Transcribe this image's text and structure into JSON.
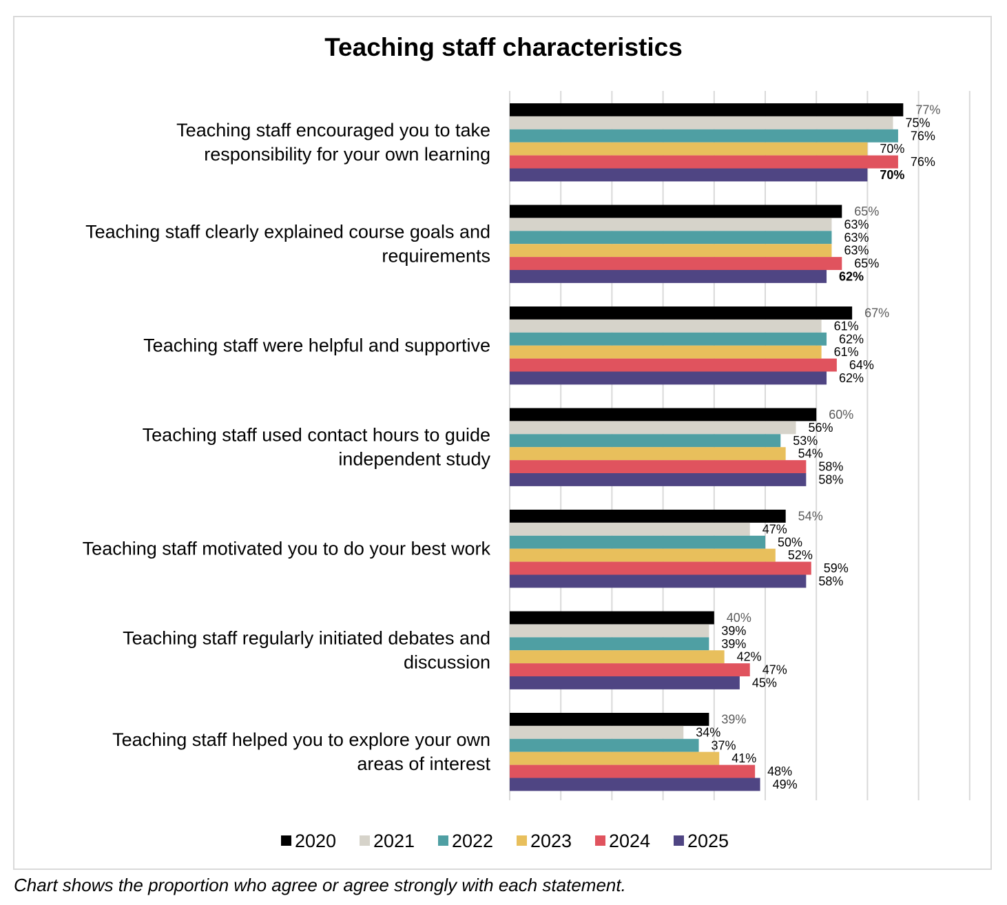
{
  "chart_data": {
    "type": "bar",
    "orientation": "horizontal",
    "title": "Teaching staff characteristics",
    "xlim": [
      0,
      90
    ],
    "grid": true,
    "legend_position": "bottom",
    "categories": [
      [
        "Teaching staff encouraged you to take",
        "responsibility for your own learning"
      ],
      [
        "Teaching staff clearly explained course goals and",
        "requirements"
      ],
      [
        "Teaching staff were helpful and supportive"
      ],
      [
        "Teaching staff used contact hours to guide",
        "independent study"
      ],
      [
        "Teaching staff motivated you to do your best work"
      ],
      [
        "Teaching staff regularly initiated debates and",
        "discussion"
      ],
      [
        "Teaching staff helped you to explore your own",
        "areas of interest"
      ]
    ],
    "series": [
      {
        "name": "2020",
        "color": "#000000",
        "label_color": "#595959",
        "values": [
          77,
          65,
          67,
          60,
          54,
          40,
          39
        ]
      },
      {
        "name": "2021",
        "color": "#d6d3ca",
        "label_color": "#000000",
        "values": [
          75,
          63,
          61,
          56,
          47,
          39,
          34
        ]
      },
      {
        "name": "2022",
        "color": "#4f9fa3",
        "label_color": "#000000",
        "values": [
          76,
          63,
          62,
          53,
          50,
          39,
          37
        ]
      },
      {
        "name": "2023",
        "color": "#e8bf5c",
        "label_color": "#000000",
        "values": [
          70,
          63,
          61,
          54,
          52,
          42,
          41
        ]
      },
      {
        "name": "2024",
        "color": "#e0535e",
        "label_color": "#000000",
        "values": [
          76,
          65,
          64,
          58,
          59,
          47,
          48
        ]
      },
      {
        "name": "2025",
        "color": "#4f4583",
        "label_color": "#000000",
        "values": [
          70,
          62,
          62,
          58,
          58,
          45,
          49
        ]
      }
    ],
    "bold_labels": [
      [
        5,
        0
      ],
      [
        5,
        1
      ]
    ]
  },
  "footnote": "Chart shows the proportion who agree or agree strongly with each statement."
}
